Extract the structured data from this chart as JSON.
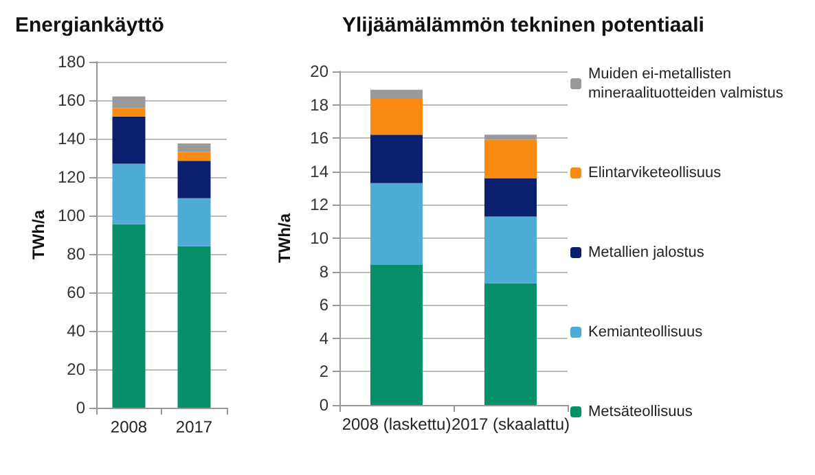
{
  "chart_data": [
    {
      "type": "bar",
      "title": "Energiankäyttö",
      "ylabel": "TWh/a",
      "categories": [
        "2008",
        "2017"
      ],
      "stacked": true,
      "series": [
        {
          "color": "#06906a",
          "values": [
            95.5,
            84
          ]
        },
        {
          "color": "#4bacd6",
          "values": [
            31.5,
            25
          ]
        },
        {
          "color": "#0a1f6e",
          "values": [
            24.5,
            19.5
          ]
        },
        {
          "color": "#fb8a12",
          "values": [
            4.5,
            4.5
          ]
        },
        {
          "color": "#9a9a9a",
          "values": [
            6,
            4.5
          ]
        }
      ],
      "ylim": [
        0,
        180
      ],
      "yticks": [
        0,
        20,
        40,
        60,
        80,
        100,
        120,
        140,
        160,
        180
      ],
      "grid": "y",
      "legend": false
    },
    {
      "type": "bar",
      "title": "Ylijäämälämmön tekninen potentiaali",
      "ylabel": "TWh/a",
      "categories": [
        "2008 (laskettu)",
        "2017 (skaalattu)"
      ],
      "stacked": true,
      "series": [
        {
          "name": "Metsäteollisuus",
          "color": "#06906a",
          "values": [
            8.4,
            7.3
          ]
        },
        {
          "name": "Kemianteollisuus",
          "color": "#4bacd6",
          "values": [
            4.9,
            4.0
          ]
        },
        {
          "name": "Metallien jalostus",
          "color": "#0a1f6e",
          "values": [
            2.9,
            2.3
          ]
        },
        {
          "name": "Elintarviketeollisuus",
          "color": "#fb8a12",
          "values": [
            2.2,
            2.3
          ]
        },
        {
          "name": "Muiden ei-metallisten mineraalituotteiden valmistus",
          "color": "#9a9a9a",
          "values": [
            0.5,
            0.3
          ]
        }
      ],
      "ylim": [
        0,
        20
      ],
      "yticks": [
        0,
        2,
        4,
        6,
        8,
        10,
        12,
        14,
        16,
        18,
        20
      ],
      "grid": "y",
      "legend": "right"
    }
  ]
}
